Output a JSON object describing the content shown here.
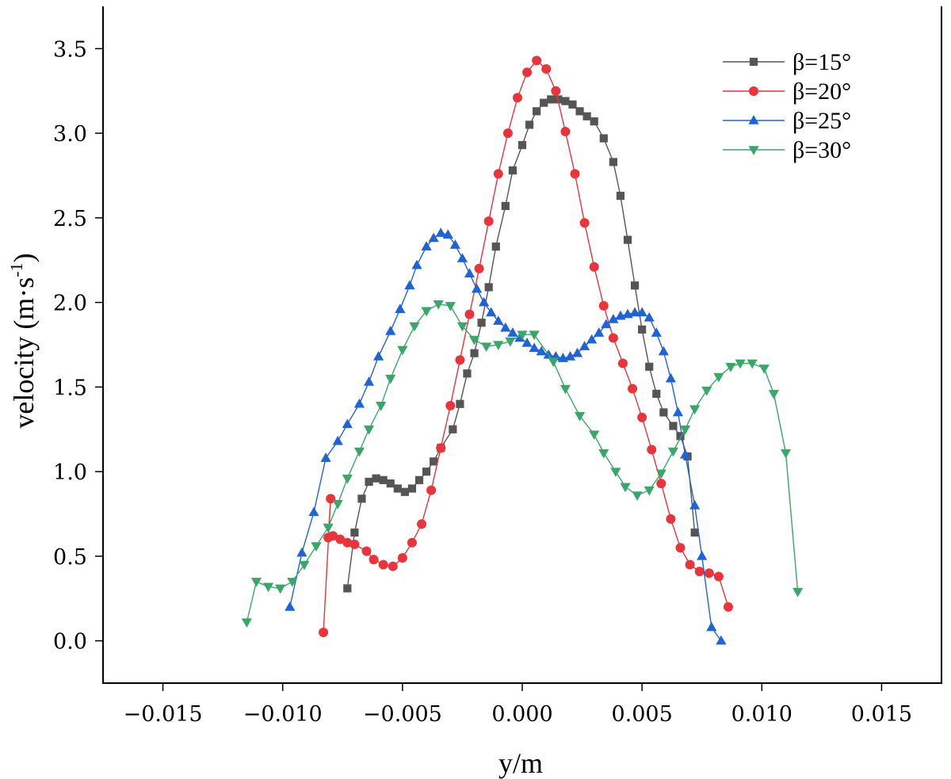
{
  "chart_data": {
    "type": "line",
    "xlabel": "y/m",
    "ylabel_main": "velocity (m·s",
    "ylabel_sup": "-1",
    "ylabel_close": ")",
    "xlim": [
      -0.0175,
      0.0175
    ],
    "ylim": [
      -0.25,
      3.75
    ],
    "xticks": [
      -0.015,
      -0.01,
      -0.005,
      0.0,
      0.005,
      0.01,
      0.015
    ],
    "xtick_labels": [
      "−0.015",
      "−0.010",
      "−0.005",
      "0.000",
      "0.005",
      "0.010",
      "0.015"
    ],
    "yticks": [
      0.0,
      0.5,
      1.0,
      1.5,
      2.0,
      2.5,
      3.0,
      3.5
    ],
    "ytick_labels": [
      "0.0",
      "0.5",
      "1.0",
      "1.5",
      "2.0",
      "2.5",
      "3.0",
      "3.5"
    ],
    "grid": false,
    "legend_position": "top-right",
    "series": [
      {
        "name": "β=15°",
        "color": "#555555",
        "marker": "square",
        "points": [
          [
            -0.0073,
            0.31
          ],
          [
            -0.007,
            0.64
          ],
          [
            -0.0067,
            0.84
          ],
          [
            -0.0064,
            0.94
          ],
          [
            -0.0061,
            0.96
          ],
          [
            -0.0058,
            0.95
          ],
          [
            -0.0055,
            0.93
          ],
          [
            -0.0052,
            0.9
          ],
          [
            -0.0049,
            0.88
          ],
          [
            -0.0046,
            0.9
          ],
          [
            -0.0043,
            0.95
          ],
          [
            -0.004,
            1.0
          ],
          [
            -0.0037,
            1.06
          ],
          [
            -0.0034,
            1.14
          ],
          [
            -0.0029,
            1.25
          ],
          [
            -0.0026,
            1.4
          ],
          [
            -0.0023,
            1.58
          ],
          [
            -0.002,
            1.7
          ],
          [
            -0.0017,
            1.88
          ],
          [
            -0.0014,
            2.09
          ],
          [
            -0.0011,
            2.33
          ],
          [
            -0.0007,
            2.57
          ],
          [
            -0.0004,
            2.78
          ],
          [
            0.0,
            2.93
          ],
          [
            0.0003,
            3.05
          ],
          [
            0.0006,
            3.13
          ],
          [
            0.0009,
            3.18
          ],
          [
            0.0012,
            3.2
          ],
          [
            0.0015,
            3.2
          ],
          [
            0.0018,
            3.19
          ],
          [
            0.0021,
            3.17
          ],
          [
            0.0024,
            3.13
          ],
          [
            0.0027,
            3.1
          ],
          [
            0.003,
            3.07
          ],
          [
            0.0034,
            2.97
          ],
          [
            0.0038,
            2.83
          ],
          [
            0.0041,
            2.63
          ],
          [
            0.0044,
            2.37
          ],
          [
            0.0047,
            2.1
          ],
          [
            0.005,
            1.84
          ],
          [
            0.0053,
            1.62
          ],
          [
            0.0056,
            1.46
          ],
          [
            0.0059,
            1.35
          ],
          [
            0.0063,
            1.27
          ],
          [
            0.0066,
            1.21
          ],
          [
            0.0069,
            1.09
          ],
          [
            0.0072,
            0.64
          ]
        ]
      },
      {
        "name": "β=20°",
        "color": "#e8343a",
        "marker": "circle",
        "points": [
          [
            -0.0083,
            0.05
          ],
          [
            -0.008,
            0.84
          ],
          [
            -0.0081,
            0.61
          ],
          [
            -0.0079,
            0.62
          ],
          [
            -0.0076,
            0.6
          ],
          [
            -0.0073,
            0.58
          ],
          [
            -0.007,
            0.57
          ],
          [
            -0.0065,
            0.53
          ],
          [
            -0.0062,
            0.48
          ],
          [
            -0.0058,
            0.45
          ],
          [
            -0.0054,
            0.44
          ],
          [
            -0.005,
            0.49
          ],
          [
            -0.0046,
            0.58
          ],
          [
            -0.0042,
            0.69
          ],
          [
            -0.0038,
            0.89
          ],
          [
            -0.0034,
            1.14
          ],
          [
            -0.003,
            1.39
          ],
          [
            -0.0026,
            1.66
          ],
          [
            -0.0022,
            1.93
          ],
          [
            -0.0018,
            2.2
          ],
          [
            -0.0014,
            2.48
          ],
          [
            -0.001,
            2.76
          ],
          [
            -0.0006,
            3.0
          ],
          [
            -0.0002,
            3.21
          ],
          [
            0.0002,
            3.36
          ],
          [
            0.0006,
            3.43
          ],
          [
            0.001,
            3.38
          ],
          [
            0.0014,
            3.25
          ],
          [
            0.0018,
            3.01
          ],
          [
            0.0022,
            2.76
          ],
          [
            0.0026,
            2.47
          ],
          [
            0.003,
            2.21
          ],
          [
            0.0034,
            1.98
          ],
          [
            0.0038,
            1.79
          ],
          [
            0.0042,
            1.64
          ],
          [
            0.0046,
            1.49
          ],
          [
            0.005,
            1.32
          ],
          [
            0.0054,
            1.13
          ],
          [
            0.0058,
            0.93
          ],
          [
            0.0062,
            0.72
          ],
          [
            0.0066,
            0.55
          ],
          [
            0.007,
            0.45
          ],
          [
            0.0074,
            0.41
          ],
          [
            0.0078,
            0.4
          ],
          [
            0.0082,
            0.38
          ],
          [
            0.0086,
            0.2
          ]
        ]
      },
      {
        "name": "β=25°",
        "color": "#1f63d4",
        "marker": "triangle-up",
        "points": [
          [
            -0.0097,
            0.2
          ],
          [
            -0.0092,
            0.52
          ],
          [
            -0.0087,
            0.76
          ],
          [
            -0.0082,
            1.08
          ],
          [
            -0.0077,
            1.18
          ],
          [
            -0.0073,
            1.28
          ],
          [
            -0.0068,
            1.4
          ],
          [
            -0.0064,
            1.53
          ],
          [
            -0.006,
            1.68
          ],
          [
            -0.0055,
            1.83
          ],
          [
            -0.0051,
            1.96
          ],
          [
            -0.0047,
            2.1
          ],
          [
            -0.0044,
            2.22
          ],
          [
            -0.004,
            2.33
          ],
          [
            -0.0037,
            2.38
          ],
          [
            -0.0034,
            2.41
          ],
          [
            -0.0031,
            2.4
          ],
          [
            -0.0028,
            2.34
          ],
          [
            -0.0025,
            2.26
          ],
          [
            -0.0022,
            2.17
          ],
          [
            -0.0019,
            2.08
          ],
          [
            -0.0016,
            2.0
          ],
          [
            -0.0013,
            1.94
          ],
          [
            -0.001,
            1.89
          ],
          [
            -0.0007,
            1.85
          ],
          [
            -0.0004,
            1.82
          ],
          [
            -0.0001,
            1.79
          ],
          [
            0.0002,
            1.76
          ],
          [
            0.0005,
            1.73
          ],
          [
            0.0008,
            1.71
          ],
          [
            0.0011,
            1.69
          ],
          [
            0.0014,
            1.68
          ],
          [
            0.0017,
            1.67
          ],
          [
            0.002,
            1.68
          ],
          [
            0.0023,
            1.7
          ],
          [
            0.0026,
            1.74
          ],
          [
            0.0029,
            1.78
          ],
          [
            0.0032,
            1.82
          ],
          [
            0.0035,
            1.87
          ],
          [
            0.0038,
            1.9
          ],
          [
            0.0041,
            1.92
          ],
          [
            0.0044,
            1.93
          ],
          [
            0.0047,
            1.94
          ],
          [
            0.005,
            1.94
          ],
          [
            0.0053,
            1.91
          ],
          [
            0.0056,
            1.82
          ],
          [
            0.0059,
            1.71
          ],
          [
            0.0062,
            1.55
          ],
          [
            0.0065,
            1.35
          ],
          [
            0.0068,
            1.1
          ],
          [
            0.0072,
            0.8
          ],
          [
            0.0075,
            0.5
          ],
          [
            0.0079,
            0.08
          ],
          [
            0.0083,
            0.0
          ]
        ]
      },
      {
        "name": "β=30°",
        "color": "#3aa66a",
        "marker": "triangle-down",
        "points": [
          [
            -0.0115,
            0.11
          ],
          [
            -0.0111,
            0.35
          ],
          [
            -0.0106,
            0.32
          ],
          [
            -0.0101,
            0.31
          ],
          [
            -0.0096,
            0.35
          ],
          [
            -0.0091,
            0.45
          ],
          [
            -0.0086,
            0.56
          ],
          [
            -0.0081,
            0.67
          ],
          [
            -0.0077,
            0.81
          ],
          [
            -0.0073,
            0.96
          ],
          [
            -0.0068,
            1.12
          ],
          [
            -0.0064,
            1.25
          ],
          [
            -0.0059,
            1.39
          ],
          [
            -0.0055,
            1.55
          ],
          [
            -0.005,
            1.72
          ],
          [
            -0.0045,
            1.86
          ],
          [
            -0.004,
            1.95
          ],
          [
            -0.0035,
            1.99
          ],
          [
            -0.003,
            1.98
          ],
          [
            -0.0025,
            1.86
          ],
          [
            -0.002,
            1.78
          ],
          [
            -0.0015,
            1.74
          ],
          [
            -0.001,
            1.75
          ],
          [
            -0.0005,
            1.77
          ],
          [
            0.0,
            1.81
          ],
          [
            0.0005,
            1.81
          ],
          [
            0.0013,
            1.65
          ],
          [
            0.0018,
            1.49
          ],
          [
            0.0024,
            1.33
          ],
          [
            0.003,
            1.22
          ],
          [
            0.0034,
            1.11
          ],
          [
            0.0039,
            1.0
          ],
          [
            0.0043,
            0.91
          ],
          [
            0.0048,
            0.86
          ],
          [
            0.0053,
            0.89
          ],
          [
            0.0058,
            0.99
          ],
          [
            0.0063,
            1.12
          ],
          [
            0.0068,
            1.25
          ],
          [
            0.0072,
            1.37
          ],
          [
            0.0077,
            1.48
          ],
          [
            0.0082,
            1.56
          ],
          [
            0.0087,
            1.62
          ],
          [
            0.0091,
            1.64
          ],
          [
            0.0096,
            1.64
          ],
          [
            0.0101,
            1.61
          ],
          [
            0.0105,
            1.46
          ],
          [
            0.011,
            1.11
          ],
          [
            0.0115,
            0.29
          ]
        ]
      }
    ]
  }
}
